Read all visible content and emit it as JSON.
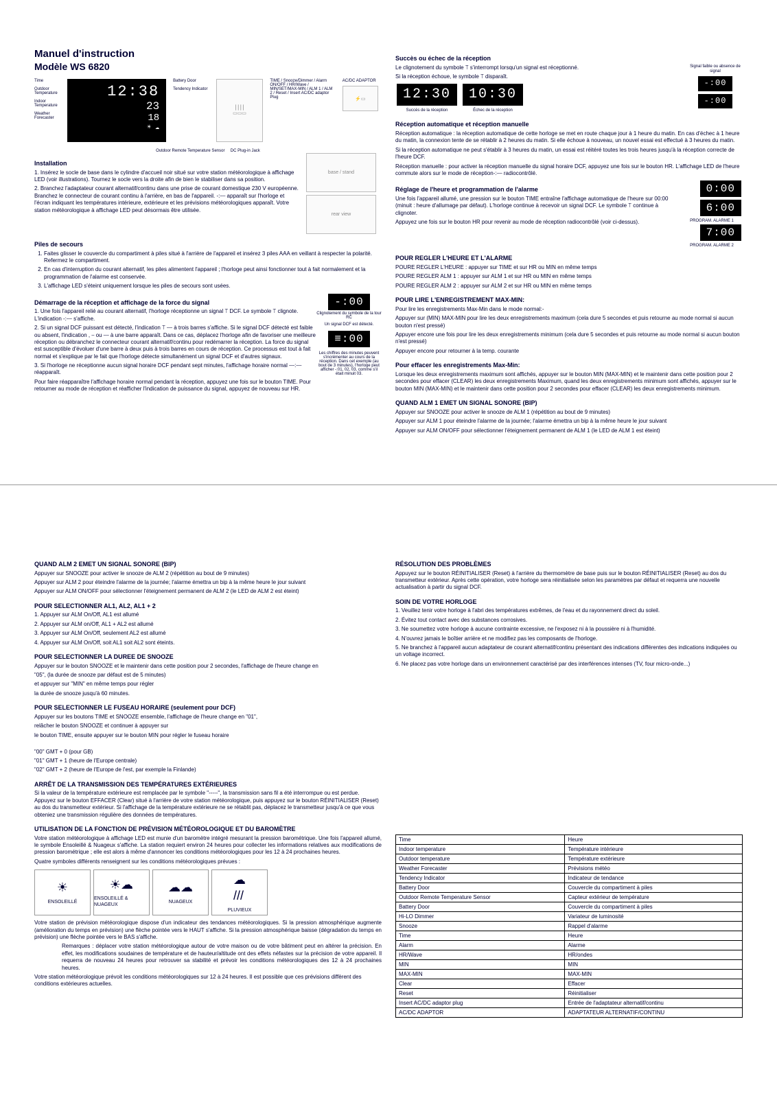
{
  "doc": {
    "title": "Manuel d'instruction",
    "model": "Modèle WS 6820"
  },
  "hero": {
    "time": "12:38",
    "out_temp": "23",
    "in_temp": "18",
    "time_label": "Time",
    "outdoor_label": "Outdoor Temperature",
    "indoor_label": "Indoor Temperature",
    "forecaster_label": "Weather Forecaster",
    "battery_door_label": "Battery Door",
    "tendency_label": "Tendency Indicator",
    "sensor_label": "Outdoor Remote Temperature Sensor",
    "adaptor_label": "AC/DC ADAPTOR",
    "plugin_label": "DC Plug-in Jack",
    "side_labels": "TIME / Snooze/Dimmer / Alarm ON/OFF / HR/Wave / MIN/SET/MAX-MIN / ALM 1 / ALM 2 / Reset / Insert AC/DC adaptor Plug"
  },
  "installation": {
    "title": "Installation",
    "p1": "1. Insérez le socle de base dans le cylindre d'accueil noir situé sur votre station météorologique à affichage LED (voir illustrations). Tournez le socle vers la droite afin de bien le stabiliser dans sa position.",
    "p2": "2. Branchez l'adaptateur courant alternatif/continu dans une prise de courant domestique 230 V européenne. Branchez le connecteur de courant continu à l'arrière, en bas de l'appareil. -:⎯⎯ apparaît sur l'horloge et l'écran indiquant les températures intérieure, extérieure et les prévisions météorologiques apparaît. Votre station météorologique à affichage LED peut désormais être utilisée."
  },
  "piles": {
    "title": "Piles de secours",
    "i1": "Faites glisser le couvercle du compartiment à piles situé à l'arrière de l'appareil et insérez 3 piles AAA en veillant à respecter la polarité. Refermez le compartiment.",
    "i2": "En cas d'interruption du courant alternatif, les piles alimentent l'appareil ; l'horloge peut ainsi fonctionner tout à fait normalement et la programmation de l'alarme est conservée.",
    "i3": "L'affichage LED s'éteint uniquement lorsque les piles de secours sont usées."
  },
  "demarrage": {
    "title": "Démarrage de la réception et affichage de la force du signal",
    "p1": "1. Une fois l'appareil relié au courant alternatif, l'horloge réceptionne un signal ⟙ DCF. Le symbole ⟙ clignote. L'indication -:⎯⎯ s'affiche.",
    "p2": "2. Si un signal DCF puissant est détecté, l'indication ⟙ ⎯⎯ à trois barres s'affiche. Si le signal DCF détecté est faible ou absent, l'indication , ⎯ ou ⎯⎯ à une barre apparaît. Dans ce cas, déplacez l'horloge afin de favoriser une meilleure réception ou débranchez le connecteur courant alternatif/continu pour redémarrer la réception. La force du signal est susceptible d'évoluer d'une barre à deux puis à trois barres en cours de réception. Ce processus est tout à fait normal et s'explique par le fait que l'horloge détecte simultanément un signal DCF et d'autres signaux.",
    "p3": "3. Si l'horloge ne réceptionne aucun signal horaire DCF pendant sept minutes, l'affichage horaire normal ⎯⎯:⎯⎯ réapparaît.",
    "p4": "Pour faire réapparaître l'affichage horaire normal pendant la réception, appuyez une fois sur le bouton TIME. Pour retourner au mode de réception et réafficher l'indication de puissance du signal, appuyez de nouveau sur HR.",
    "lcd_top": "-:00",
    "lcd_bottom": "≡:00",
    "note_top": "Clignotement du symbole de la tour RC",
    "note_mid": "Un signal DCF est détecté.",
    "note_bottom": "Les chiffres des minutes peuvent s'incrémenter au cours de la réception. Dans cet exemple (au bout de 3 minutes), l'horloge peut afficher -:01, 02, 03, comme s'il était minuit 03."
  },
  "succes": {
    "title": "Succès ou échec de la réception",
    "p1": "Le clignotement du symbole ⟙ s'interrompt lorsqu'un signal est réceptionné.",
    "p2": "Si la réception échoue, le symbole ⟙ disparaît.",
    "lcd_left": "12:30",
    "lcd_right": "10:30",
    "lbl_left": "Succès de la réception",
    "lbl_right": "Échec de la réception",
    "faible_lcd_top": "-:00",
    "faible_lcd_bot": "-:00",
    "faible_label": "Signal faible ou absence de signal"
  },
  "recep_auto": {
    "title": "Réception automatique et réception manuelle",
    "p1": "Réception automatique : la réception automatique de cette horloge se met en route chaque jour à 1 heure du matin. En cas d'échec à 1 heure du matin, la connexion tente de se rétablir à 2 heures du matin. Si elle échoue à nouveau, un nouvel essai est effectué à 3 heures du matin.",
    "p2": "Si la réception automatique ne peut s'établir à 3 heures du matin, un essai est réitéré toutes les trois heures jusqu'à la réception correcte de l'heure DCF.",
    "p3": "Réception manuelle : pour activer la réception manuelle du signal horaire DCF, appuyez une fois sur le bouton HR. L'affichage LED de l'heure commute alors sur le mode de réception-:⎯⎯ radiocontrôlé."
  },
  "reglage": {
    "title": "Réglage de l'heure et programmation de l'alarme",
    "p1": "Une fois l'appareil allumé, une pression sur le bouton TIME entraîne l'affichage automatique de l'heure sur 00:00 (minuit : heure d'allumage par défaut). L'horloge continue à recevoir un signal DCF. Le symbole ⟙ continue à clignoter.",
    "p2": "Appuyez une fois sur le bouton HR pour revenir au mode de réception radiocontrôlé (voir ci-dessus).",
    "lcd1": "0:00",
    "lcd2": "6:00",
    "lcd2_label": "PROGRAM. ALARME 1",
    "lcd3": "7:00",
    "lcd3_label": "PROGRAM. ALARME 2",
    "set_title": "POUR REGLER L'HEURE ET L'ALARME",
    "set_l1": "POURE REGLER L'HEURE : appuyer sur TIME et sur HR ou MIN en même temps",
    "set_l2": "POURE REGLER ALM 1 : appuyer sur ALM 1 et sur HR ou MIN en même temps",
    "set_l3": "POURE REGLER ALM 2 : appuyer sur ALM 2 et sur HR ou MIN en même temps"
  },
  "maxmin": {
    "title": "POUR LIRE L'ENREGISTREMENT MAX-MIN:",
    "p1": "Pour lire les enregistrements Max-Min dans le mode normal:-",
    "p2": "Appuyer sur (MIN) MAX-MIN pour lire les deux enregistrements maximum (cela dure 5 secondes et puis retourne au mode normal si aucun bouton n'est pressé)",
    "p3": "Appuyer encore une fois pour lire les deux enregistrements minimum (cela dure 5 secondes et puis retourne au mode normal si aucun bouton n'est pressé)",
    "p4": "Appuyer encore pour retourner à la temp. courante"
  },
  "effacer": {
    "title": "Pour effacer les enregistrements Max-Min:",
    "p1": "Lorsque les deux enregistrements maximum sont affichés, appuyer sur le bouton MIN (MAX-MIN) et le maintenir dans cette position pour 2 secondes pour effacer (CLEAR) les deux enregistrements Maximum, quand les deux enregistrements minimum sont affichés, appuyer sur le bouton MIN (MAX-MIN) et le maintenir dans cette position pour 2 secondes pour effacer (CLEAR) les deux enregistrements minimum."
  },
  "alm1": {
    "title": "QUAND ALM 1 EMET UN SIGNAL SONORE (BIP)",
    "p1": "Appuyer sur SNOOZE pour activer le snooze de ALM 1 (répétition au bout de 9 minutes)",
    "p2": "Appuyer sur ALM 1 pour éteindre l'alarme de la journée; l'alarme émettra un bip à la même heure le jour suivant",
    "p3": "Appuyer sur ALM ON/OFF pour sélectionner l'éteignement permanent de ALM 1 (le LED de ALM 1 est éteint)"
  },
  "alm2": {
    "title": "QUAND ALM 2 EMET UN SIGNAL SONORE (BIP)",
    "p1": "Appuyer sur SNOOZE pour activer le snooze de ALM 2 (répétition au bout de 9 minutes)",
    "p2": "Appuyer sur ALM 2 pour éteindre l'alarme de la journée; l'alarme émettra un bip à la même heure le jour suivant",
    "p3": "Appuyer sur ALM ON/OFF pour sélectionner l'éteignement permanent de ALM 2 (le LED de ALM 2 est éteint)"
  },
  "select_alm": {
    "title": "POUR SELECTIONNER AL1, AL2, AL1 + 2",
    "i1": "1. Appuyer sur ALM On/Off, AL1 est allumé",
    "i2": "2. Appuyer sur ALM on/Off, AL1 + AL2 est allumé",
    "i3": "3. Appuyer sur ALM On/Off, seulement AL2 est allumé",
    "i4": "4. Appuyer sur ALM On/Off, soit AL1 soit AL2 sont éteints."
  },
  "snooze": {
    "title": "POUR SELECTIONNER LA DUREE DE SNOOZE",
    "p1": "Appuyer sur le bouton SNOOZE et le maintenir dans cette position pour 2 secondes, l'affichage de l'heure change en",
    "p2": "\"05\", (la durée de snooze par défaut est de 5 minutes)",
    "p3": "et appuyer sur \"MIN\" en même temps pour régler",
    "p4": "la durée de snooze jusqu'à 60 minutes."
  },
  "fuseau": {
    "title": "POUR SELECTIONNER LE FUSEAU HORAIRE (seulement pour DCF)",
    "p1": "Appuyer sur les boutons TIME et SNOOZE ensemble, l'affichage de l'heure change en \"01\",",
    "p2": "relâcher le bouton SNOOZE et continuer à appuyer sur",
    "p3": "le bouton TIME, ensuite appuyer sur le bouton MIN pour régler le fuseau horaire",
    "z1": "\"00\" GMT + 0 (pour GB)",
    "z2": "\"01\" GMT + 1 (heure de l'Europe centrale)",
    "z3": "\"02\" GMT + 2 (heure de l'Europe de l'est, par exemple la Finlande)"
  },
  "arret": {
    "title": "ARRÊT DE LA TRANSMISSION DES TEMPÉRATURES EXTÉRIEURES",
    "p1": "Si la valeur de la température extérieure est remplacée par le symbole \"-----\", la transmission sans fil a été interrompue ou est perdue. Appuyez sur le bouton EFFACER (Clear) situé à l'arrière de votre station météorologique, puis appuyez sur le bouton RÉINITIALISER (Reset) au dos du transmetteur extérieur. Si l'affichage de la température extérieure ne se rétablit pas, déplacez le transmetteur jusqu'à ce que vous obteniez une transmission régulière des données de températures."
  },
  "barometre": {
    "title": "UTILISATION DE LA FONCTION DE PRÉVISION MÉTÉOROLOGIQUE ET DU BAROMÈTRE",
    "p1": "Votre station météorologique à affichage LED est munie d'un baromètre intégré mesurant la pression barométrique. Une fois l'appareil allumé, le symbole Ensoleillé & Nuageux s'affiche. La station requiert environ 24 heures pour collecter les informations relatives aux modifications de pression barométrique ; elle est alors à même d'annoncer les conditions météorologiques pour les 12 à 24 prochaines heures.",
    "p2": "Quatre symboles différents renseignent sur les conditions météorologiques prévues :",
    "w1": "ENSOLEILLÉ",
    "w2": "ENSOLEILLÉ & NUAGEUX",
    "w3": "NUAGEUX",
    "w4": "PLUVIEUX",
    "p3": "Votre station de prévision météorologique dispose d'un indicateur des tendances météorologiques. Si la pression atmosphérique augmente (amélioration du temps en prévision) une flèche pointée vers le HAUT s'affiche. Si la pression atmosphérique baisse (dégradation du temps en prévision) une flèche pointée vers le BAS s'affiche.",
    "p4": "Remarques : déplacer votre station météorologique autour de votre maison ou de votre bâtiment peut en altérer la précision. En effet, les modifications soudaines de température et de hauteur/altitude ont des effets néfastes sur la précision de votre appareil. Il requerra de nouveau 24 heures pour retrouver sa stabilité et prévoir les conditions météorologiques des 12 à 24 prochaines heures.",
    "p5": "Votre station météorologique prévoit les conditions météorologiques sur 12 à 24 heures. Il est possible que ces prévisions diffèrent des conditions extérieures actuelles."
  },
  "resolution": {
    "title": "RÉSOLUTION DES PROBLÈMES",
    "p1": "Appuyez sur le bouton RÉINITIALISER (Reset) à l'arrière du thermomètre de base puis sur le bouton RÉINITIALISER (Reset) au dos du transmetteur extérieur. Après cette opération, votre horloge sera réinitialisée selon les paramètres par défaut et requerra une nouvelle actualisation à partir du signal DCF."
  },
  "soin": {
    "title": "SOIN DE VOTRE HORLOGE",
    "i1": "1. Veuillez tenir votre horloge à l'abri des températures extrêmes, de l'eau et du rayonnement direct du soleil.",
    "i2": "2. Évitez tout contact avec des substances corrosives.",
    "i3": "3. Ne soumettez votre horloge à aucune contrainte excessive, ne l'exposez ni à la poussière ni à l'humidité.",
    "i4": "4. N'ouvrez jamais le boîtier arrière et ne modifiez pas les composants de l'horloge.",
    "i5": "5. Ne branchez à l'appareil aucun adaptateur de courant alternatif/continu présentant des indications différentes des indications indiquées ou un voltage incorrect.",
    "i6": "6. Ne placez pas votre horloge dans un environnement caractérisé par des interférences intenses (TV, four micro-onde...)"
  },
  "glossary": {
    "rows": [
      [
        "Time",
        "Heure"
      ],
      [
        "Indoor temperature",
        "Température intérieure"
      ],
      [
        "Outdoor temperature",
        "Température extérieure"
      ],
      [
        "Weather Forecaster",
        "Prévisions météo"
      ],
      [
        "Tendency Indicator",
        "Indicateur de tendance"
      ],
      [
        "Battery Door",
        "Couvercle du compartiment à piles"
      ],
      [
        "Outdoor Remote Temperature Sensor",
        "Capteur extérieur de température"
      ],
      [
        "Battery Door",
        "Couvercle du compartiment à piles"
      ],
      [
        "Hi-LO Dimmer",
        "Variateur de luminosité"
      ],
      [
        "Snooze",
        "Rappel d'alarme"
      ],
      [
        "Time",
        "Heure"
      ],
      [
        "Alarm",
        "Alarme"
      ],
      [
        "HR/Wave",
        "HR/ondes"
      ],
      [
        "MIN",
        "MIN"
      ],
      [
        "MAX-MIN",
        "MAX-MIN"
      ],
      [
        "Clear",
        "Effacer"
      ],
      [
        "Reset",
        "Réinitialiser"
      ],
      [
        "Insert AC/DC adaptor plug",
        "Entrée de l'adaptateur alternatif/continu"
      ],
      [
        "AC/DC ADAPTOR",
        "ADAPTATEUR ALTERNATIF/CONTINU"
      ]
    ]
  },
  "colors": {
    "text": "#000033",
    "lcd_bg": "#000000",
    "lcd_fg": "#ffffff",
    "border": "#999999"
  }
}
